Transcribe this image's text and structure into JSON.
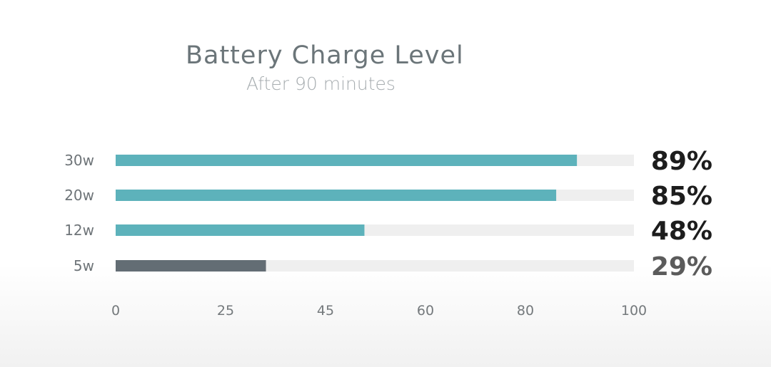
{
  "chart_data": {
    "type": "bar",
    "orientation": "horizontal",
    "title": "Battery Charge Level",
    "subtitle": "After 90 minutes",
    "categories": [
      "30w",
      "20w",
      "12w",
      "5w"
    ],
    "values": [
      89,
      85,
      48,
      29
    ],
    "value_labels": [
      "89%",
      "85%",
      "48%",
      "29%"
    ],
    "x_ticks": [
      0,
      25,
      45,
      60,
      80,
      100
    ],
    "xlim": [
      0,
      100
    ],
    "grid": false,
    "bar_colors": [
      "#5db2bb",
      "#5db2bb",
      "#5db2bb",
      "#636d74"
    ],
    "track_color": "#efefef",
    "value_label_colors": [
      "#1d1d1d",
      "#1d1d1d",
      "#1d1d1d",
      "#5b5b5b"
    ]
  }
}
